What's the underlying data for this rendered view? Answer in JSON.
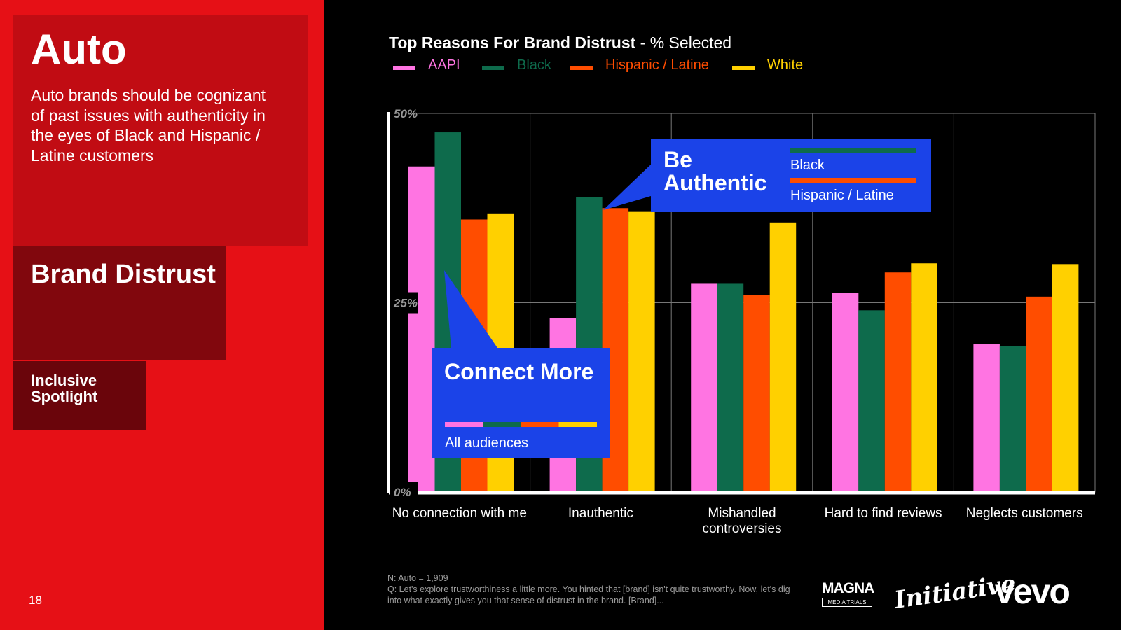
{
  "sidebar": {
    "title": "Auto",
    "description": "Auto brands should be cognizant of past issues with authenticity in the eyes of Black and Hispanic / Latine customers",
    "section": "Brand Distrust",
    "subsection": "Inclusive Spotlight",
    "page_number": "18"
  },
  "chart_data": {
    "type": "bar",
    "title_bold": "Top Reasons For Brand Distrust",
    "title_rest": " - % Selected",
    "categories": [
      "No connection with me",
      "Inauthentic",
      "Mishandled controversies",
      "Hard to find reviews",
      "Neglects customers"
    ],
    "series": [
      {
        "name": "AAPI",
        "color": "#ff74e2",
        "values": [
          43,
          23,
          27.5,
          26.3,
          19.5
        ]
      },
      {
        "name": "Black",
        "color": "#0e6b4c",
        "values": [
          47.5,
          39,
          27.5,
          24,
          19.3
        ]
      },
      {
        "name": "Hispanic / Latine",
        "color": "#ff4d00",
        "values": [
          36,
          37.5,
          26,
          29,
          25.8
        ]
      },
      {
        "name": "White",
        "color": "#ffd000",
        "values": [
          36.8,
          37,
          35.6,
          30.2,
          30.1
        ]
      }
    ],
    "y_ticks": [
      "50%",
      "25%",
      "0%"
    ],
    "ylim": [
      0,
      50
    ],
    "grid": true,
    "legend_position": "top-left"
  },
  "callouts": {
    "be_authentic": {
      "title": "Be Authentic",
      "line1_label": "Black",
      "line2_label": "Hispanic / Latine",
      "line1_color": "#0e6b4c",
      "line2_color": "#ff4d00"
    },
    "connect_more": {
      "title": "Connect More",
      "caption": "All audiences",
      "bar_colors": [
        "#ff74e2",
        "#0e6b4c",
        "#ff4d00",
        "#ffd000"
      ]
    }
  },
  "footnote": {
    "n": "N: Auto = 1,909",
    "q": "Q: Let's explore trustworthiness a little more. You hinted that [brand] isn't quite trustworthy. Now, let's dig into what exactly gives you that sense of distrust in the brand. [Brand]..."
  },
  "logos": {
    "magna": "MAGNA",
    "magna_sub": "MEDIA TRIALS",
    "initiative": "Initiative",
    "vevo": "vevo"
  }
}
